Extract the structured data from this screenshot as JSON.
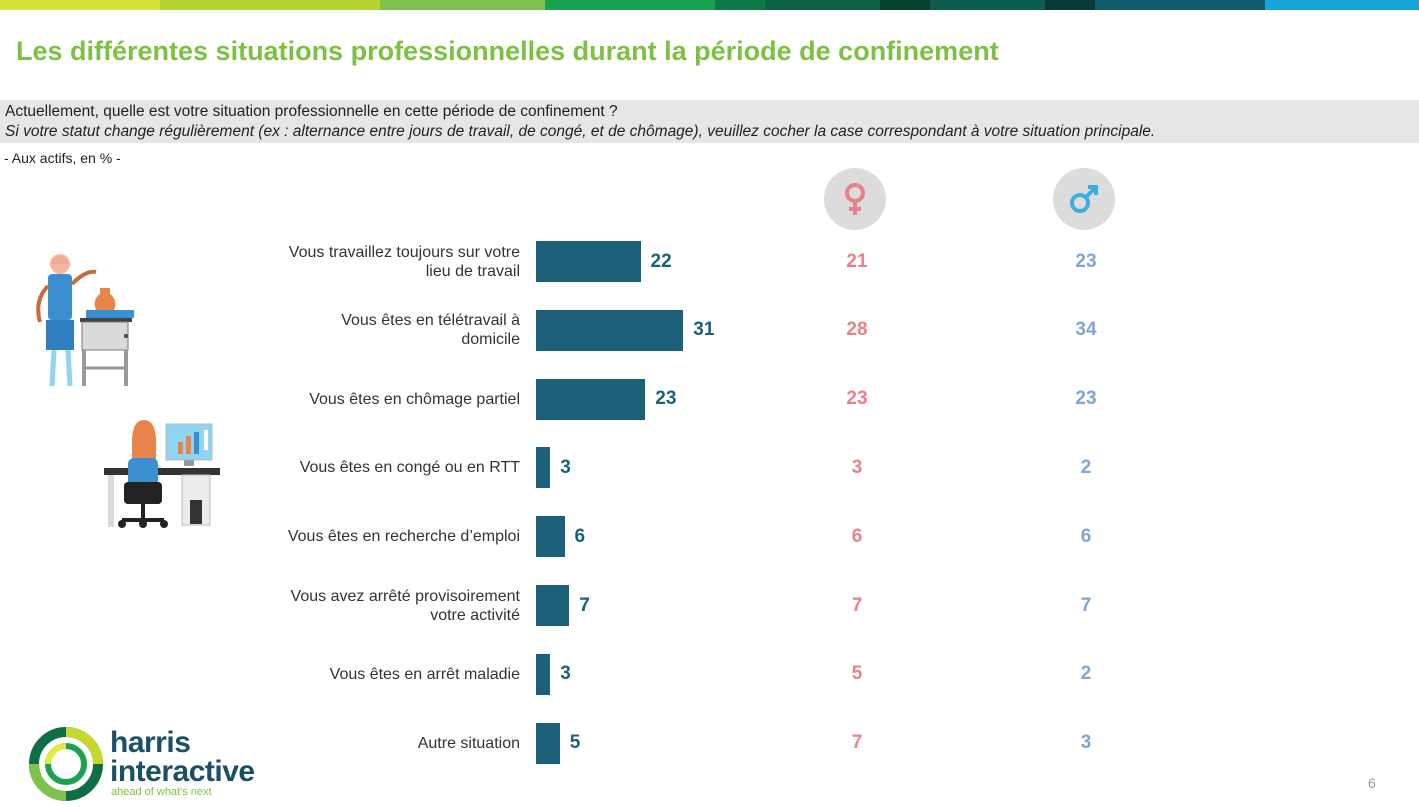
{
  "title": "Les différentes situations professionnelles durant la période de confinement",
  "question": "Actuellement, quelle est votre situation professionnelle en cette période de confinement ?",
  "instruction": "Si votre statut change régulièrement (ex : alternance entre jours de travail, de congé, et de chômage), veuillez cocher la case correspondant à votre situation principale.",
  "base": "- Aux actifs, en % -",
  "colors": {
    "bar": "#1c6179",
    "women": "#e8818a",
    "men": "#7fa6d3",
    "title": "#7dc142"
  },
  "icons": [
    "female-symbol-icon",
    "male-symbol-icon",
    "potter-worker-icon",
    "office-worker-icon",
    "harris-logo-icon"
  ],
  "chart_data": {
    "type": "bar",
    "orientation": "horizontal",
    "categories": [
      "Vous travaillez toujours sur votre lieu de travail",
      "Vous êtes en télétravail à domicile",
      "Vous êtes en chômage partiel",
      "Vous êtes en congé ou en RTT",
      "Vous êtes en recherche d’emploi",
      "Vous avez arrêté provisoirement votre activité",
      "Vous êtes en arrêt maladie",
      "Autre situation"
    ],
    "series": [
      {
        "values": [
          22,
          31,
          23,
          3,
          6,
          7,
          3,
          5
        ]
      },
      {
        "values": [
          21,
          28,
          23,
          3,
          6,
          7,
          5,
          7
        ]
      },
      {
        "values": [
          23,
          34,
          23,
          2,
          6,
          7,
          2,
          3
        ]
      }
    ],
    "data_labels": true,
    "grid": false,
    "legend": "none"
  },
  "logo": {
    "line1": "harris",
    "line2": "interactive",
    "tagline": "ahead of what's next"
  },
  "page_number": "6"
}
